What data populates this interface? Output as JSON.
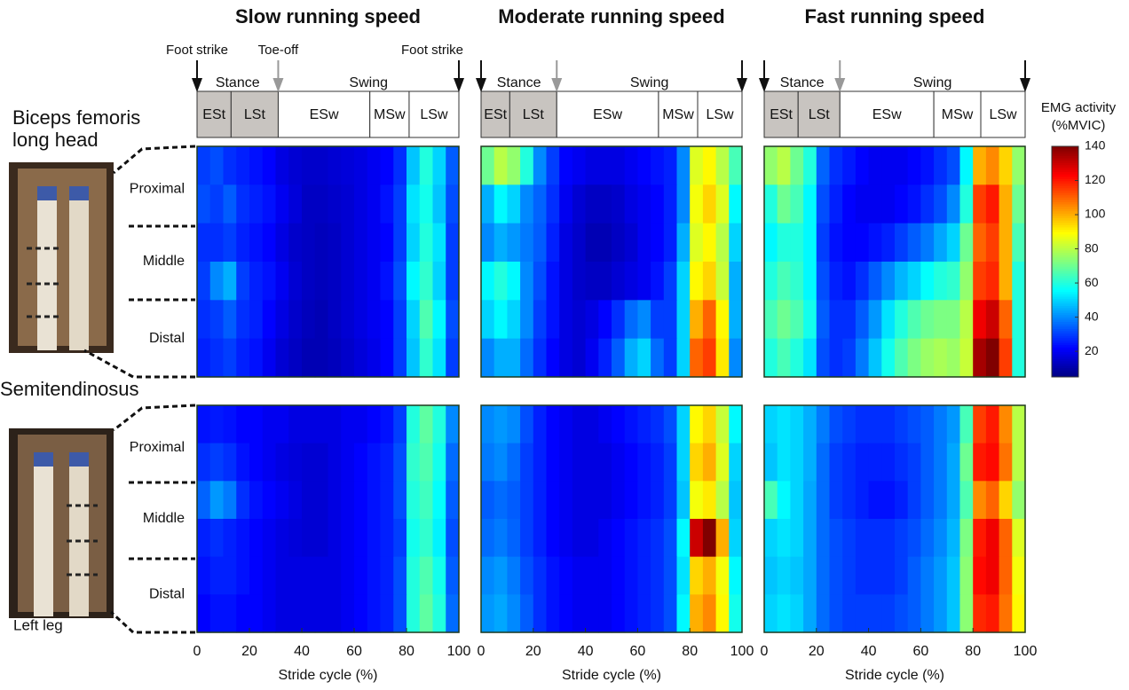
{
  "chart_data": [
    {
      "type": "heatmap",
      "title": "Slow running speed",
      "xlim": [
        0,
        100
      ],
      "clim": [
        5,
        140
      ],
      "events": [
        {
          "value": 0,
          "label": "Foot strike"
        },
        {
          "value": 31,
          "label": "Toe-off"
        },
        {
          "value": 100,
          "label": "Foot strike"
        }
      ],
      "groups": [
        {
          "label": "Stance",
          "start": 0,
          "end": 31
        },
        {
          "label": "Swing",
          "start": 31,
          "end": 100
        }
      ],
      "phases": [
        {
          "label": "ESt",
          "start": 0,
          "end": 13
        },
        {
          "label": "LSt",
          "start": 13,
          "end": 31
        },
        {
          "label": "ESw",
          "start": 31,
          "end": 66
        },
        {
          "label": "MSw",
          "start": 66,
          "end": 81
        },
        {
          "label": "LSw",
          "start": 81,
          "end": 100
        }
      ],
      "values": [
        [
          30,
          32,
          28,
          26,
          24,
          22,
          18,
          16,
          15,
          15,
          16,
          17,
          18,
          20,
          22,
          28,
          48,
          60,
          50,
          34
        ],
        [
          32,
          30,
          34,
          28,
          26,
          24,
          20,
          17,
          14,
          14,
          15,
          16,
          18,
          20,
          24,
          30,
          52,
          58,
          48,
          32
        ],
        [
          28,
          28,
          30,
          26,
          24,
          22,
          18,
          15,
          14,
          13,
          14,
          16,
          18,
          20,
          22,
          30,
          50,
          60,
          52,
          30
        ],
        [
          30,
          40,
          45,
          30,
          26,
          24,
          20,
          16,
          14,
          13,
          14,
          16,
          18,
          20,
          24,
          32,
          55,
          62,
          50,
          30
        ],
        [
          28,
          30,
          34,
          28,
          26,
          22,
          18,
          15,
          13,
          12,
          14,
          16,
          18,
          20,
          22,
          30,
          50,
          66,
          55,
          32
        ],
        [
          26,
          28,
          30,
          26,
          24,
          20,
          16,
          14,
          12,
          12,
          13,
          15,
          17,
          19,
          22,
          30,
          48,
          62,
          52,
          30
        ]
      ]
    },
    {
      "type": "heatmap",
      "title": "Moderate running speed",
      "xlim": [
        0,
        100
      ],
      "clim": [
        5,
        140
      ],
      "events": [
        0,
        29,
        100
      ],
      "groups": [
        {
          "label": "Stance",
          "start": 0,
          "end": 29
        },
        {
          "label": "Swing",
          "start": 29,
          "end": 100
        }
      ],
      "phases": [
        {
          "label": "ESt",
          "start": 0,
          "end": 11
        },
        {
          "label": "LSt",
          "start": 11,
          "end": 29
        },
        {
          "label": "ESw",
          "start": 29,
          "end": 68
        },
        {
          "label": "MSw",
          "start": 68,
          "end": 83
        },
        {
          "label": "LSw",
          "start": 83,
          "end": 100
        }
      ],
      "values": [
        [
          70,
          80,
          75,
          60,
          40,
          30,
          22,
          20,
          18,
          18,
          18,
          20,
          22,
          24,
          26,
          40,
          85,
          90,
          80,
          65
        ],
        [
          45,
          55,
          50,
          40,
          35,
          28,
          20,
          16,
          14,
          14,
          15,
          18,
          20,
          22,
          26,
          40,
          88,
          95,
          85,
          55
        ],
        [
          40,
          45,
          42,
          38,
          34,
          26,
          18,
          15,
          12,
          12,
          14,
          16,
          20,
          22,
          26,
          45,
          85,
          90,
          80,
          50
        ],
        [
          55,
          60,
          55,
          40,
          32,
          24,
          18,
          15,
          14,
          14,
          16,
          18,
          20,
          24,
          30,
          50,
          90,
          95,
          82,
          45
        ],
        [
          50,
          55,
          50,
          40,
          30,
          24,
          18,
          16,
          18,
          22,
          28,
          36,
          40,
          30,
          30,
          50,
          100,
          110,
          90,
          45
        ],
        [
          40,
          45,
          45,
          36,
          28,
          22,
          18,
          16,
          20,
          26,
          34,
          45,
          50,
          36,
          30,
          50,
          110,
          115,
          92,
          40
        ]
      ]
    },
    {
      "type": "heatmap",
      "title": "Fast running speed",
      "xlim": [
        0,
        100
      ],
      "clim": [
        5,
        140
      ],
      "events": [
        0,
        29,
        100
      ],
      "groups": [
        {
          "label": "Stance",
          "start": 0,
          "end": 29
        },
        {
          "label": "Swing",
          "start": 29,
          "end": 100
        }
      ],
      "phases": [
        {
          "label": "ESt",
          "start": 0,
          "end": 13
        },
        {
          "label": "LSt",
          "start": 13,
          "end": 29
        },
        {
          "label": "ESw",
          "start": 29,
          "end": 65
        },
        {
          "label": "MSw",
          "start": 65,
          "end": 83
        },
        {
          "label": "LSw",
          "start": 83,
          "end": 100
        }
      ],
      "values": [
        [
          75,
          80,
          70,
          60,
          35,
          28,
          25,
          22,
          20,
          20,
          20,
          22,
          24,
          28,
          32,
          55,
          100,
          105,
          95,
          75
        ],
        [
          60,
          70,
          65,
          55,
          32,
          26,
          22,
          20,
          20,
          20,
          22,
          24,
          28,
          32,
          40,
          60,
          115,
          120,
          100,
          70
        ],
        [
          55,
          60,
          60,
          55,
          30,
          24,
          22,
          22,
          24,
          26,
          30,
          34,
          38,
          44,
          50,
          70,
          110,
          115,
          100,
          65
        ],
        [
          60,
          65,
          62,
          55,
          32,
          26,
          24,
          28,
          34,
          40,
          46,
          50,
          56,
          60,
          62,
          75,
          115,
          118,
          100,
          60
        ],
        [
          65,
          70,
          66,
          58,
          34,
          28,
          28,
          34,
          42,
          52,
          60,
          66,
          70,
          72,
          72,
          80,
          125,
          130,
          110,
          60
        ],
        [
          60,
          65,
          60,
          52,
          32,
          28,
          30,
          38,
          48,
          58,
          66,
          72,
          76,
          78,
          76,
          82,
          135,
          140,
          115,
          60
        ]
      ]
    },
    {
      "type": "heatmap",
      "xlim": [
        0,
        100
      ],
      "clim": [
        5,
        140
      ],
      "xticks": [
        0,
        20,
        40,
        60,
        80,
        100
      ],
      "xlabel": "Stride cycle (%)",
      "values": [
        [
          24,
          25,
          24,
          22,
          22,
          20,
          20,
          18,
          18,
          18,
          18,
          20,
          20,
          22,
          24,
          30,
          60,
          68,
          60,
          40
        ],
        [
          28,
          30,
          28,
          24,
          22,
          20,
          18,
          17,
          16,
          16,
          18,
          20,
          22,
          24,
          26,
          32,
          62,
          66,
          58,
          36
        ],
        [
          35,
          42,
          38,
          28,
          24,
          22,
          20,
          18,
          16,
          16,
          18,
          20,
          22,
          24,
          26,
          32,
          60,
          64,
          56,
          34
        ],
        [
          26,
          28,
          26,
          24,
          22,
          20,
          18,
          17,
          16,
          16,
          18,
          20,
          22,
          24,
          26,
          30,
          58,
          62,
          54,
          32
        ],
        [
          24,
          26,
          26,
          24,
          22,
          20,
          18,
          18,
          18,
          18,
          18,
          20,
          22,
          24,
          26,
          32,
          60,
          66,
          58,
          34
        ],
        [
          22,
          24,
          24,
          22,
          22,
          20,
          18,
          18,
          18,
          18,
          18,
          20,
          22,
          24,
          26,
          32,
          60,
          68,
          60,
          36
        ]
      ]
    },
    {
      "type": "heatmap",
      "xlim": [
        0,
        100
      ],
      "clim": [
        5,
        140
      ],
      "xticks": [
        0,
        20,
        40,
        60,
        80,
        100
      ],
      "xlabel": "Stride cycle (%)",
      "values": [
        [
          40,
          42,
          40,
          32,
          26,
          22,
          20,
          18,
          18,
          20,
          22,
          24,
          26,
          28,
          32,
          50,
          90,
          95,
          82,
          55
        ],
        [
          38,
          40,
          36,
          30,
          26,
          22,
          20,
          18,
          18,
          18,
          20,
          22,
          24,
          26,
          30,
          50,
          95,
          100,
          85,
          50
        ],
        [
          34,
          36,
          34,
          30,
          26,
          22,
          20,
          18,
          18,
          18,
          20,
          22,
          24,
          26,
          30,
          48,
          88,
          92,
          80,
          48
        ],
        [
          36,
          38,
          35,
          30,
          26,
          22,
          20,
          18,
          18,
          20,
          22,
          24,
          26,
          28,
          32,
          55,
          130,
          140,
          100,
          50
        ],
        [
          40,
          42,
          38,
          32,
          28,
          24,
          22,
          20,
          20,
          20,
          22,
          24,
          26,
          28,
          32,
          52,
          95,
          100,
          88,
          55
        ],
        [
          42,
          44,
          40,
          34,
          28,
          24,
          22,
          20,
          20,
          20,
          22,
          24,
          26,
          28,
          32,
          55,
          100,
          105,
          90,
          58
        ]
      ]
    },
    {
      "type": "heatmap",
      "xlim": [
        0,
        100
      ],
      "clim": [
        5,
        140
      ],
      "xticks": [
        0,
        20,
        40,
        60,
        80,
        100
      ],
      "xlabel": "Stride cycle (%)",
      "values": [
        [
          50,
          52,
          50,
          45,
          38,
          32,
          30,
          28,
          28,
          28,
          30,
          32,
          34,
          38,
          42,
          65,
          115,
          120,
          105,
          80
        ],
        [
          48,
          52,
          50,
          45,
          36,
          30,
          28,
          26,
          26,
          26,
          28,
          30,
          34,
          38,
          44,
          70,
          120,
          122,
          108,
          80
        ],
        [
          65,
          55,
          50,
          44,
          36,
          30,
          28,
          26,
          24,
          24,
          26,
          30,
          34,
          38,
          44,
          66,
          105,
          110,
          95,
          75
        ],
        [
          50,
          52,
          50,
          44,
          36,
          32,
          30,
          28,
          28,
          28,
          30,
          32,
          36,
          40,
          46,
          72,
          120,
          125,
          110,
          85
        ],
        [
          48,
          50,
          48,
          44,
          36,
          32,
          30,
          28,
          28,
          28,
          30,
          34,
          38,
          42,
          48,
          74,
          122,
          125,
          110,
          88
        ],
        [
          50,
          52,
          50,
          44,
          36,
          32,
          30,
          30,
          30,
          30,
          32,
          34,
          38,
          42,
          48,
          74,
          118,
          120,
          108,
          90
        ]
      ]
    }
  ],
  "colorbar": {
    "label": [
      "EMG activity",
      "(%MVIC)"
    ],
    "lim": [
      5,
      140
    ],
    "ticks": [
      20,
      40,
      60,
      80,
      100,
      120,
      140
    ]
  },
  "muscles": [
    [
      "Biceps femoris",
      "long head"
    ],
    [
      "Semitendinosus"
    ]
  ],
  "regions": [
    "Proximal",
    "Middle",
    "Distal"
  ],
  "leg": "Left leg"
}
